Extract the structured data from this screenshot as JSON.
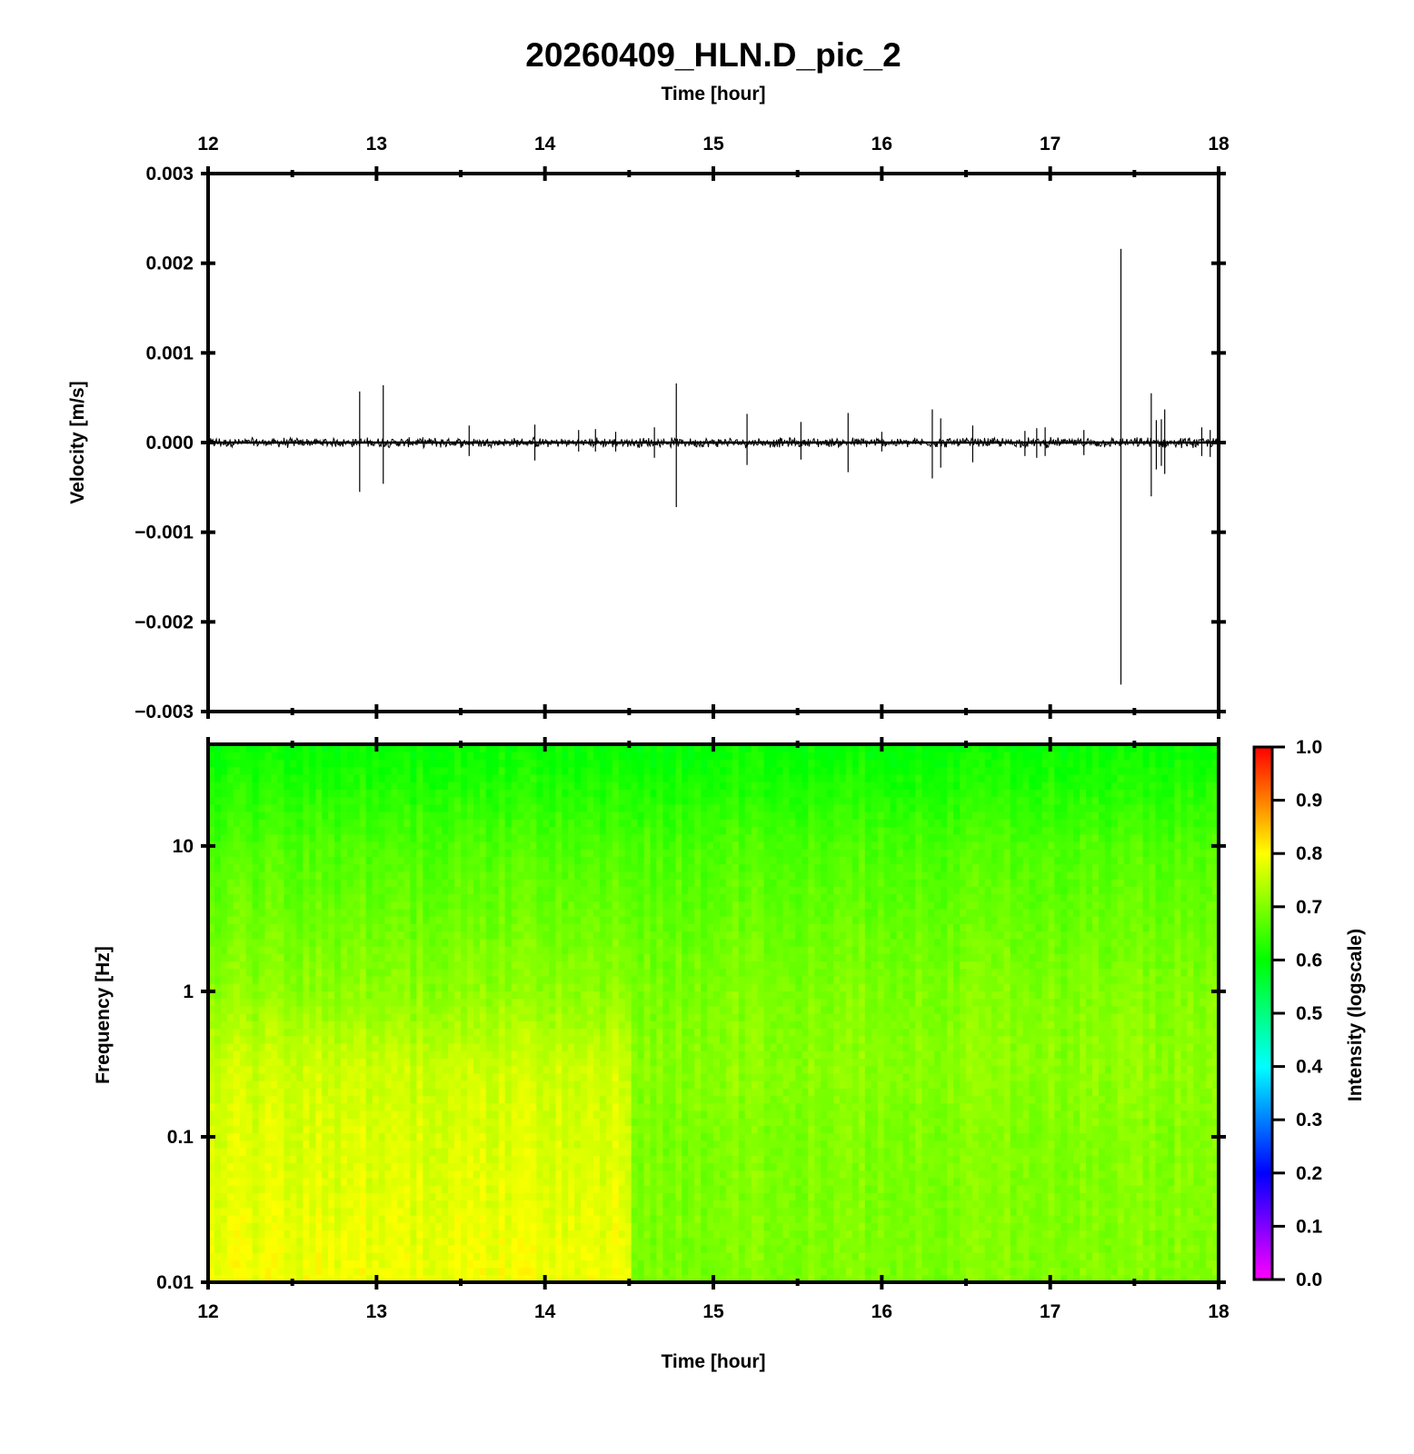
{
  "chart_data": [
    {
      "type": "line",
      "title": "20260409_HLN.D_pic_2",
      "xlabel": "Time [hour]",
      "ylabel": "Velocity [m/s]",
      "xlim": [
        12,
        18
      ],
      "ylim": [
        -0.003,
        0.003
      ],
      "x_ticks": [
        "12",
        "13",
        "14",
        "15",
        "16",
        "17",
        "18"
      ],
      "y_ticks": [
        "−0.003",
        "−0.002",
        "−0.001",
        "0.000",
        "0.001",
        "0.002",
        "0.003"
      ],
      "y_tick_values": [
        -0.003,
        -0.002,
        -0.001,
        0.0,
        0.001,
        0.002,
        0.003
      ],
      "baseline_noise": 4e-05,
      "series": [
        {
          "spikes": [
            {
              "t": 12.9,
              "max": 0.00057,
              "min": -0.00055
            },
            {
              "t": 13.04,
              "max": 0.00064,
              "min": -0.00046
            },
            {
              "t": 13.55,
              "max": 0.00019,
              "min": -0.00015
            },
            {
              "t": 13.94,
              "max": 0.0002,
              "min": -0.0002
            },
            {
              "t": 14.2,
              "max": 0.00014,
              "min": -0.0001
            },
            {
              "t": 14.3,
              "max": 0.00015,
              "min": -0.0001
            },
            {
              "t": 14.42,
              "max": 0.00012,
              "min": -0.0001
            },
            {
              "t": 14.65,
              "max": 0.00017,
              "min": -0.00017
            },
            {
              "t": 14.78,
              "max": 0.00066,
              "min": -0.00072
            },
            {
              "t": 15.2,
              "max": 0.00032,
              "min": -0.00025
            },
            {
              "t": 15.52,
              "max": 0.00023,
              "min": -0.00019
            },
            {
              "t": 15.8,
              "max": 0.00033,
              "min": -0.00033
            },
            {
              "t": 16.0,
              "max": 0.00012,
              "min": -0.0001
            },
            {
              "t": 16.3,
              "max": 0.00037,
              "min": -0.0004
            },
            {
              "t": 16.35,
              "max": 0.00027,
              "min": -0.00028
            },
            {
              "t": 16.54,
              "max": 0.00019,
              "min": -0.00022
            },
            {
              "t": 16.85,
              "max": 0.00013,
              "min": -0.00015
            },
            {
              "t": 16.92,
              "max": 0.00016,
              "min": -0.00017
            },
            {
              "t": 16.97,
              "max": 0.00017,
              "min": -0.00015
            },
            {
              "t": 17.2,
              "max": 0.00014,
              "min": -0.00014
            },
            {
              "t": 17.42,
              "max": 0.00216,
              "min": -0.0027
            },
            {
              "t": 17.6,
              "max": 0.00055,
              "min": -0.0006
            },
            {
              "t": 17.63,
              "max": 0.00025,
              "min": -0.0003
            },
            {
              "t": 17.66,
              "max": 0.00026,
              "min": -0.00026
            },
            {
              "t": 17.68,
              "max": 0.00037,
              "min": -0.00035
            },
            {
              "t": 17.9,
              "max": 0.00017,
              "min": -0.00015
            },
            {
              "t": 17.95,
              "max": 0.00014,
              "min": -0.00016
            }
          ]
        }
      ]
    },
    {
      "type": "heatmap",
      "xlabel": "Time [hour]",
      "ylabel": "Frequency [Hz]",
      "xlim": [
        12,
        18
      ],
      "ylim": [
        0.01,
        50
      ],
      "yscale": "log",
      "x_ticks": [
        "12",
        "13",
        "14",
        "15",
        "16",
        "17",
        "18"
      ],
      "y_ticks": [
        "0.01",
        "0.1",
        "1",
        "10"
      ],
      "y_tick_values": [
        0.01,
        0.1,
        1,
        10
      ],
      "colorbar": {
        "label": "Intensity (logscale)",
        "range": [
          0.0,
          1.0
        ],
        "ticks": [
          "0.0",
          "0.1",
          "0.2",
          "0.3",
          "0.4",
          "0.5",
          "0.6",
          "0.7",
          "0.8",
          "0.9",
          "1.0"
        ],
        "tick_values": [
          0.0,
          0.1,
          0.2,
          0.3,
          0.4,
          0.5,
          0.6,
          0.7,
          0.8,
          0.9,
          1.0
        ],
        "colormap": [
          "#ff00ff",
          "#0000ff",
          "#00ffff",
          "#00ff00",
          "#ffff00",
          "#ff0000"
        ]
      },
      "intensity_profile_before": [
        {
          "f": 0.01,
          "v": 0.79
        },
        {
          "f": 0.1,
          "v": 0.77
        },
        {
          "f": 0.3,
          "v": 0.76
        },
        {
          "f": 1,
          "v": 0.71
        },
        {
          "f": 10,
          "v": 0.66
        },
        {
          "f": 50,
          "v": 0.6
        }
      ],
      "intensity_profile_after": [
        {
          "f": 0.01,
          "v": 0.7
        },
        {
          "f": 0.1,
          "v": 0.7
        },
        {
          "f": 0.3,
          "v": 0.71
        },
        {
          "f": 1,
          "v": 0.7
        },
        {
          "f": 10,
          "v": 0.66
        },
        {
          "f": 50,
          "v": 0.6
        }
      ],
      "regime_change_hour": 14.5
    }
  ]
}
